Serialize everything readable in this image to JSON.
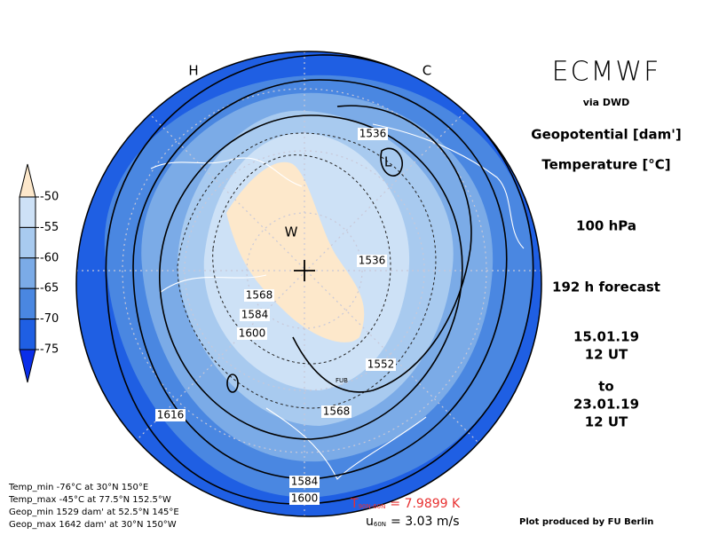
{
  "header": {
    "title": "ECMWF",
    "source": "via DWD",
    "quantities": [
      "Geopotential [dam']",
      "Temperature [°C]"
    ],
    "level": "100 hPa",
    "forecast": "192 h forecast",
    "valid_from": {
      "date": "15.01.19",
      "time": "12 UT"
    },
    "to": "to",
    "valid_to": {
      "date": "23.01.19",
      "time": "12 UT"
    }
  },
  "colorbar": {
    "ticks": [
      -50,
      -55,
      -60,
      -65,
      -70,
      -75
    ],
    "colors": [
      "#fde8cb",
      "#cde1f6",
      "#a8caef",
      "#7babe7",
      "#4a87e1",
      "#1f5fe3",
      "#0a2ee9"
    ]
  },
  "map": {
    "letters": [
      "H",
      "C",
      "L",
      "W",
      "FUB"
    ],
    "contour_labels": [
      1536,
      1536,
      1568,
      1584,
      1600,
      1552,
      1568,
      1616,
      1584,
      1600
    ]
  },
  "stats": [
    "Temp_min -76°C at 30°N 150°E",
    "Temp_max -45°C at 77.5°N 152.5°W",
    "Geop_min 1529 dam' at 52.5°N 145°E",
    "Geop_max 1642 dam' at 30°N 150°W"
  ],
  "footer": {
    "t_diff": {
      "symbol": "T",
      "subscript": "90N-60N",
      "text": "= 7.9899 K"
    },
    "u": {
      "symbol": "u",
      "subscript": "60N",
      "text": "= 3.03 m/s"
    },
    "credit": "Plot produced by FU Berlin"
  }
}
